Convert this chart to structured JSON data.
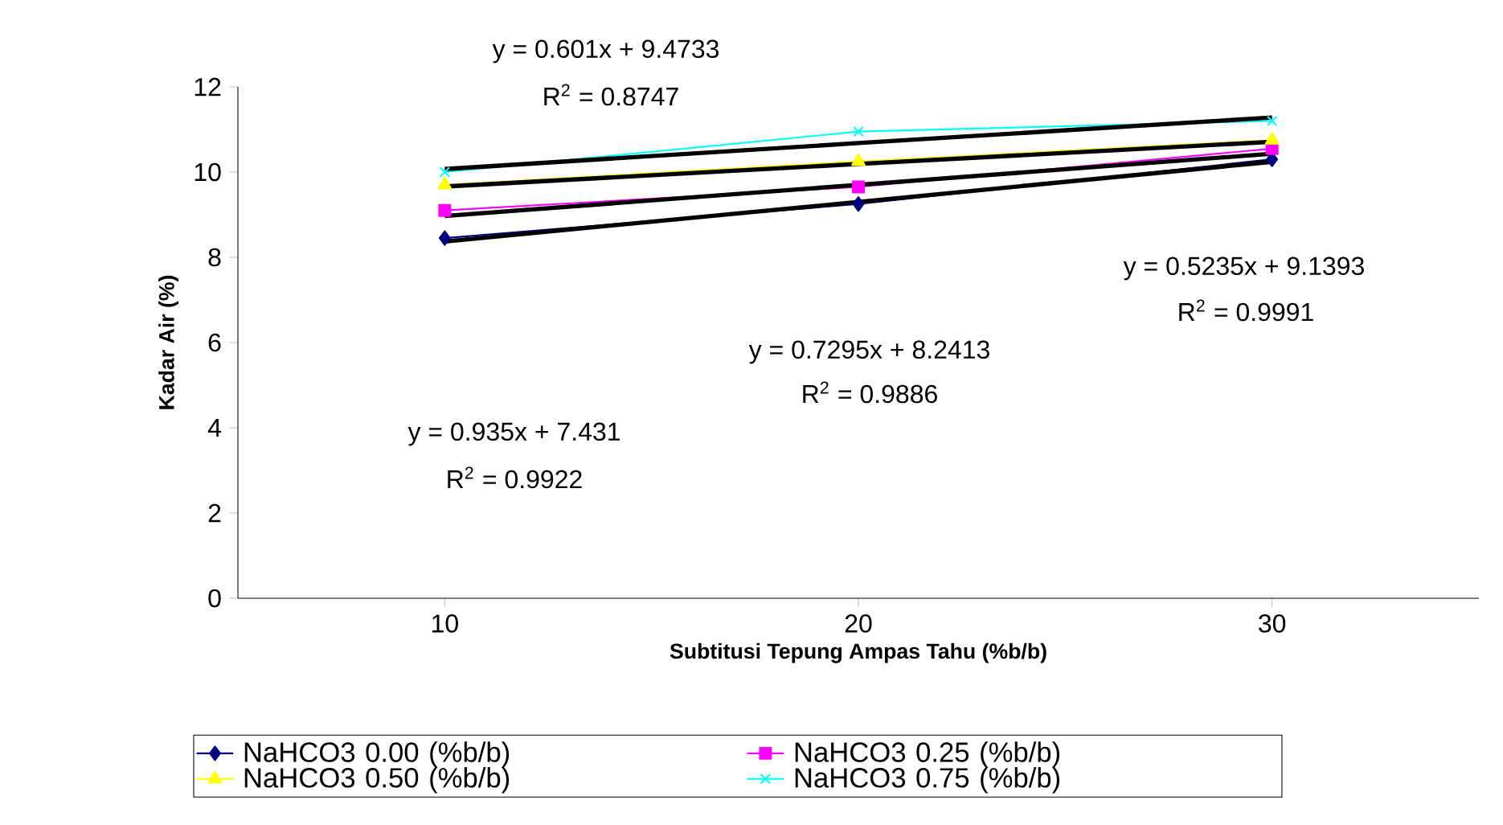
{
  "chart_data": {
    "type": "line",
    "xlabel": "Subtitusi Tepung Ampas Tahu (%b/b)",
    "ylabel": "Kadar Air (%)",
    "categories": [
      "10",
      "20",
      "30"
    ],
    "ylim": [
      0,
      12
    ],
    "yticks": [
      0,
      2,
      4,
      6,
      8,
      10,
      12
    ],
    "grid": false,
    "legend": "bottom",
    "series": [
      {
        "name": "NaHCO3 0.00 (%b/b)",
        "color": "#000080",
        "marker": "diamond",
        "values": [
          8.45,
          9.25,
          10.3
        ]
      },
      {
        "name": "NaHCO3 0.25 (%b/b)",
        "color": "#ff00ff",
        "marker": "square",
        "values": [
          9.1,
          9.65,
          10.55
        ]
      },
      {
        "name": "NaHCO3 0.50 (%b/b)",
        "color": "#ffff00",
        "marker": "triangle",
        "values": [
          9.7,
          10.25,
          10.75
        ]
      },
      {
        "name": "NaHCO3 0.75 (%b/b)",
        "color": "#00ffff",
        "marker": "cross",
        "values": [
          10.0,
          10.95,
          11.2
        ]
      },
      {
        "color": "#000000",
        "marker": "none",
        "values": [
          8.37,
          9.3,
          10.24
        ]
      },
      {
        "color": "#000000",
        "marker": "none",
        "values": [
          8.97,
          9.7,
          10.43
        ]
      },
      {
        "color": "#000000",
        "marker": "none",
        "values": [
          9.66,
          10.19,
          10.71
        ]
      },
      {
        "color": "#000000",
        "marker": "none",
        "values": [
          10.07,
          10.68,
          11.28
        ]
      }
    ],
    "annotations": [
      "y = 0.601x + 9.4733",
      "R$^{2}$ = 0.8747",
      "y = 0.5235x + 9.1393",
      "R$^{2}$ = 0.9991",
      "y = 0.7295x + 8.2413",
      "R$^{2}$ = 0.9886",
      "y = 0.935x + 7.431",
      "R$^{2}$ = 0.9922"
    ]
  }
}
